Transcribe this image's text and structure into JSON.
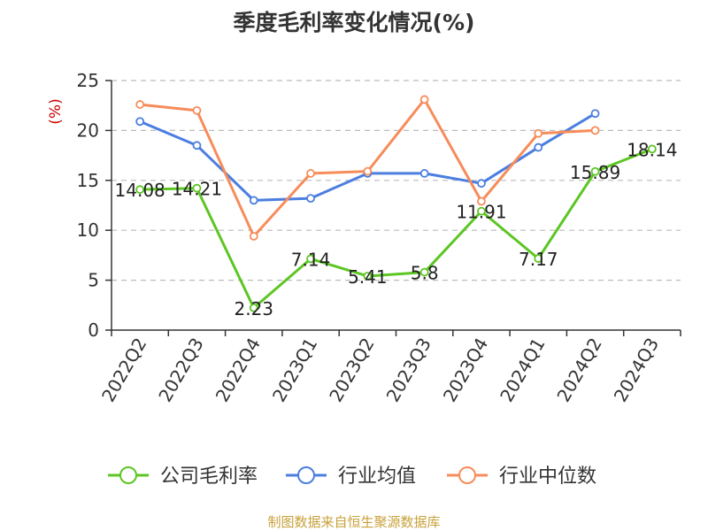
{
  "title": "季度毛利率变化情况(%)",
  "source": "制图数据来自恒生聚源数据库",
  "chart_data": {
    "type": "line",
    "title": "季度毛利率变化情况(%)",
    "ylabel": "(%)",
    "ylim": [
      0,
      25
    ],
    "yticks": [
      0,
      5,
      10,
      15,
      20,
      25
    ],
    "grid": true,
    "legend_position": "bottom",
    "categories": [
      "2022Q2",
      "2022Q3",
      "2022Q4",
      "2023Q1",
      "2023Q2",
      "2023Q3",
      "2023Q4",
      "2024Q1",
      "2024Q2",
      "2024Q3"
    ],
    "series": [
      {
        "name": "公司毛利率",
        "color": "#5cc623",
        "values": [
          14.08,
          14.21,
          2.23,
          7.14,
          5.41,
          5.8,
          11.91,
          7.17,
          15.89,
          18.14
        ],
        "labels": [
          "14.08",
          "14.21",
          "2.23",
          "7.14",
          "5.41",
          "5.8",
          "11.91",
          "7.17",
          "15.89",
          "18.14"
        ]
      },
      {
        "name": "行业均值",
        "color": "#4b7ee0",
        "values": [
          20.9,
          18.5,
          13.0,
          13.2,
          15.7,
          15.7,
          14.7,
          18.3,
          21.7,
          null
        ]
      },
      {
        "name": "行业中位数",
        "color": "#f78c5a",
        "values": [
          22.6,
          22.0,
          9.4,
          15.7,
          15.9,
          23.1,
          12.9,
          19.7,
          20.0,
          null
        ]
      }
    ]
  }
}
